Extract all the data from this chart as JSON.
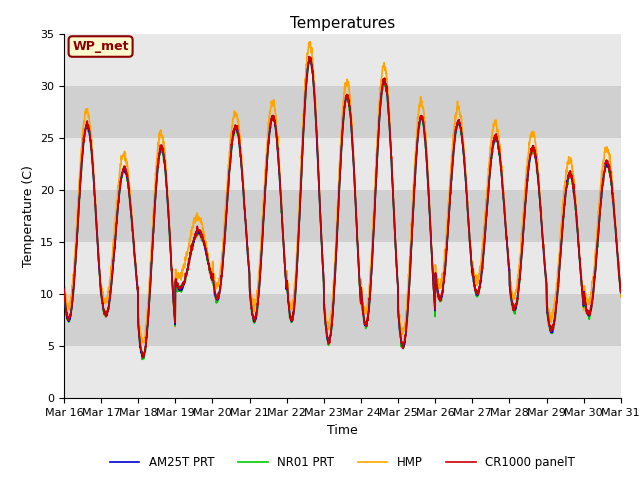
{
  "title": "Temperatures",
  "xlabel": "Time",
  "ylabel": "Temperature (C)",
  "ylim": [
    0,
    35
  ],
  "annotation_text": "WP_met",
  "annotation_bg": "#FFFACD",
  "annotation_border": "#8B0000",
  "bg_color": "#DCDCDC",
  "band_colors": [
    "#E8E8E8",
    "#D0D0D0"
  ],
  "line_colors": {
    "CR1000 panelT": "#CC0000",
    "HMP": "#FFA500",
    "NR01 PRT": "#00CC00",
    "AM25T PRT": "#0000CC"
  },
  "x_tick_labels": [
    "Mar 16",
    "Mar 17",
    "Mar 18",
    "Mar 19",
    "Mar 20",
    "Mar 21",
    "Mar 22",
    "Mar 23",
    "Mar 24",
    "Mar 25",
    "Mar 26",
    "Mar 27",
    "Mar 28",
    "Mar 29",
    "Mar 30",
    "Mar 31"
  ],
  "start_day": 16,
  "end_day": 31,
  "points_per_day": 144,
  "day_peaks": [
    26.2,
    22.0,
    24.0,
    16.0,
    26.0,
    27.0,
    32.5,
    29.0,
    30.5,
    27.0,
    26.5,
    25.0,
    24.0,
    21.5,
    22.5,
    23.5
  ],
  "day_troughs": [
    7.5,
    8.0,
    4.0,
    10.5,
    9.5,
    7.5,
    7.5,
    5.5,
    7.0,
    5.0,
    9.5,
    10.0,
    8.5,
    6.5,
    8.0,
    8.5
  ]
}
